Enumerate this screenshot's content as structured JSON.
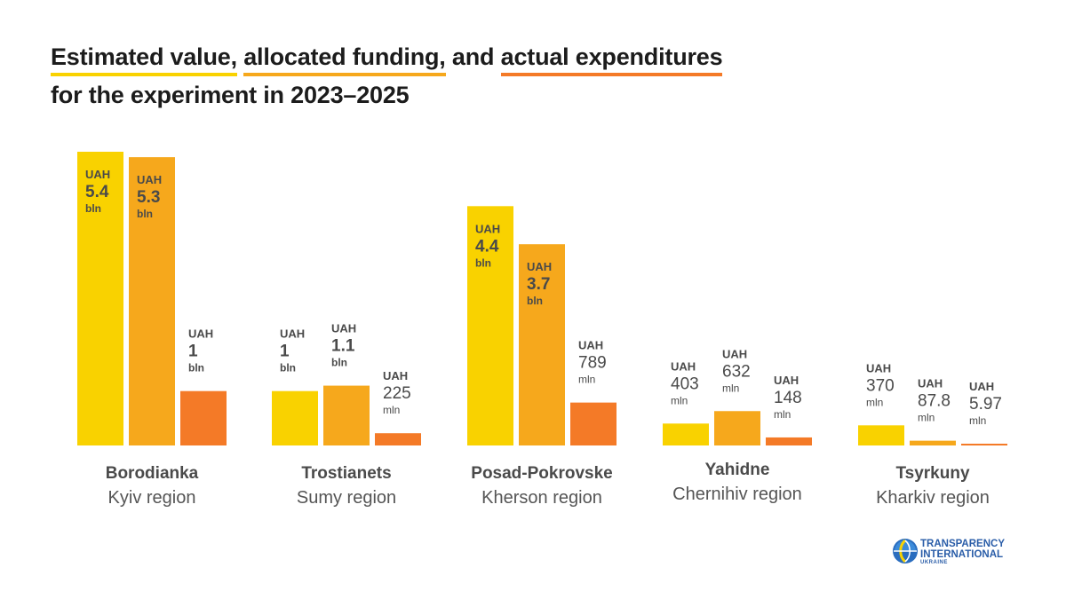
{
  "title": {
    "part1": "Estimated value,",
    "part2": "allocated funding,",
    "part3": "and",
    "part4": "actual expenditures",
    "line2": "for the experiment in 2023–2025"
  },
  "colors": {
    "estimated": "#F9D200",
    "allocated": "#F6A81C",
    "actual": "#F47A27",
    "label_text": "#4a4a4a"
  },
  "chart_data": {
    "type": "bar",
    "title": "Estimated value, allocated funding, and actual expenditures for the experiment in 2023–2025",
    "unit": "mln UAH",
    "categories": [
      "Borodianka",
      "Trostianets",
      "Posad-Pokrovske",
      "Yahidne",
      "Tsyrkuny"
    ],
    "subtitles": [
      "Kyiv region",
      "Sumy region",
      "Kherson region",
      "Chernihiv region",
      "Kharkiv region"
    ],
    "series": [
      {
        "values": [
          5400,
          1000,
          4400,
          403,
          370
        ],
        "labels": [
          {
            "cur": "UAH",
            "num": "5.4",
            "unit": "bln"
          },
          {
            "cur": "UAH",
            "num": "1",
            "unit": "bln"
          },
          {
            "cur": "UAH",
            "num": "4.4",
            "unit": "bln"
          },
          {
            "cur": "UAH",
            "num": "403",
            "unit": "mln"
          },
          {
            "cur": "UAH",
            "num": "370",
            "unit": "mln"
          }
        ]
      },
      {
        "values": [
          5300,
          1100,
          3700,
          632,
          87.8
        ],
        "labels": [
          {
            "cur": "UAH",
            "num": "5.3",
            "unit": "bln"
          },
          {
            "cur": "UAH",
            "num": "1.1",
            "unit": "bln"
          },
          {
            "cur": "UAH",
            "num": "3.7",
            "unit": "bln"
          },
          {
            "cur": "UAH",
            "num": "632",
            "unit": "mln"
          },
          {
            "cur": "UAH",
            "num": "87.8",
            "unit": "mln"
          }
        ]
      },
      {
        "values": [
          1000,
          225,
          789,
          148,
          5.97
        ],
        "labels": [
          {
            "cur": "UAH",
            "num": "1",
            "unit": "bln"
          },
          {
            "cur": "UAH",
            "num": "225",
            "unit": "mln"
          },
          {
            "cur": "UAH",
            "num": "789",
            "unit": "mln"
          },
          {
            "cur": "UAH",
            "num": "148",
            "unit": "mln"
          },
          {
            "cur": "UAH",
            "num": "5.97",
            "unit": "mln"
          }
        ]
      }
    ],
    "ylim": [
      0,
      5400
    ],
    "grid": false,
    "legend": "none"
  },
  "logo": {
    "line1": "TRANSPARENCY",
    "line2": "INTERNATIONAL",
    "line3": "UKRAINE"
  }
}
